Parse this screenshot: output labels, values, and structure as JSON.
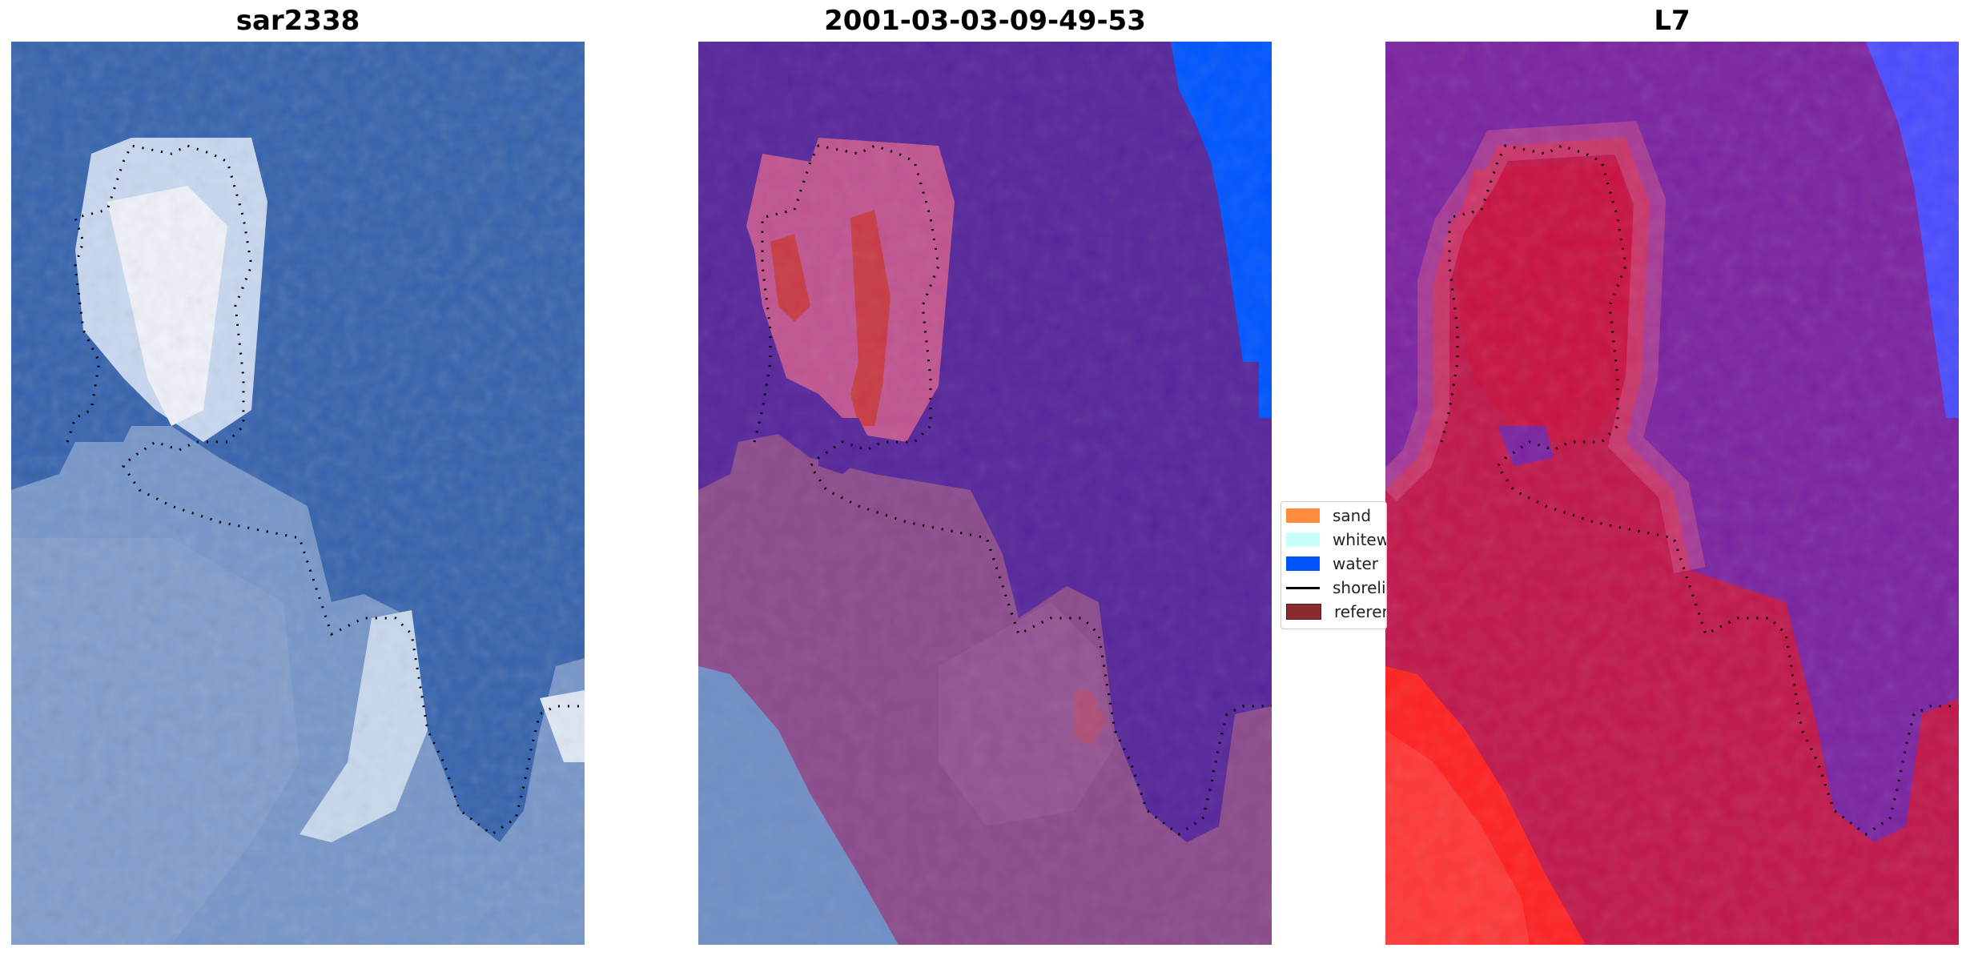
{
  "panels": [
    {
      "title": "sar2338"
    },
    {
      "title": "2001-03-03-09-49-53"
    },
    {
      "title": "L7"
    }
  ],
  "legend": {
    "items": [
      {
        "label": "sand",
        "color": "#ff8c3c"
      },
      {
        "label": "whitewater",
        "color": "#c8fff8"
      },
      {
        "label": "water",
        "color": "#0055ff"
      },
      {
        "label": "shoreline",
        "color": "#000000"
      },
      {
        "label": "reference shoreline",
        "color": "#8b2a2e"
      }
    ]
  },
  "colors": {
    "rgb_water": "#3462ad",
    "rgb_land": "#6f8ec6",
    "rgb_sand": "#e8eef8",
    "class_water": "#55259a",
    "class_land": "#8a4a8a",
    "class_sand": "#c05390",
    "class_red": "#c83a44",
    "class_blue": "#0055ff",
    "mndwi_water": "#7a22a0",
    "mndwi_land": "#c0164a",
    "mndwi_red": "#ff2020",
    "mndwi_blue": "#4a4aff"
  }
}
